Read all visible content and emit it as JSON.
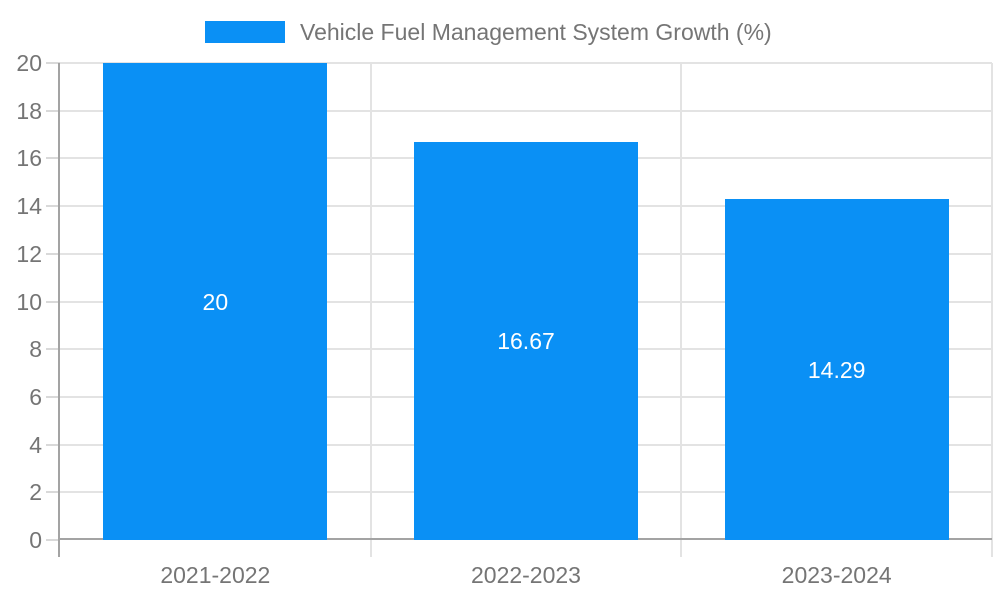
{
  "legend": {
    "title": "Vehicle Fuel Management System Growth (%)"
  },
  "chart_data": {
    "type": "bar",
    "title": "Vehicle Fuel Management System Growth (%)",
    "categories": [
      "2021-2022",
      "2022-2023",
      "2023-2024"
    ],
    "values": [
      20,
      16.67,
      14.29
    ],
    "bar_labels": [
      "20",
      "16.67",
      "14.29"
    ],
    "xlabel": "",
    "ylabel": "",
    "ylim": [
      0,
      20
    ],
    "ytick_step": 2,
    "ytick_labels": [
      "0",
      "2",
      "4",
      "6",
      "8",
      "10",
      "12",
      "14",
      "16",
      "18",
      "20"
    ],
    "grid": true,
    "legend_position": "top-center",
    "colors": {
      "bar": "#0a90f5",
      "grid": "#e3e3e3",
      "axis": "#a3a3a3",
      "tick": "#d9d9d9",
      "tick_label": "#757575",
      "bar_label": "#ffffff",
      "background": "#ffffff"
    }
  }
}
